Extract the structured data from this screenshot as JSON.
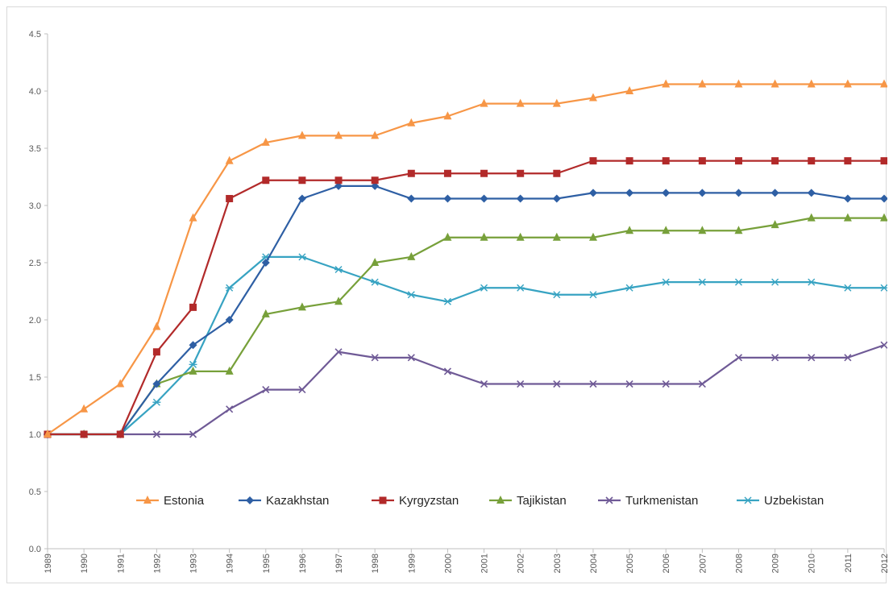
{
  "chart_data": {
    "type": "line",
    "title": "",
    "xlabel": "",
    "ylabel": "",
    "ylim": [
      0,
      4.5
    ],
    "yticks": [
      "0.0",
      "0.5",
      "1.0",
      "1.5",
      "2.0",
      "2.5",
      "3.0",
      "3.5",
      "4.0",
      "4.5"
    ],
    "categories": [
      "1989",
      "1990",
      "1991",
      "1992",
      "1993",
      "1994",
      "1995",
      "1996",
      "1997",
      "1998",
      "1999",
      "2000",
      "2001",
      "2002",
      "2003",
      "2004",
      "2005",
      "2006",
      "2007",
      "2008",
      "2009",
      "2010",
      "2011",
      "2012"
    ],
    "grid": false,
    "legend_position": "bottom-center-inside",
    "series": [
      {
        "name": "Estonia",
        "color": "#f79646",
        "marker": "triangle",
        "values": [
          1.0,
          1.22,
          1.44,
          1.94,
          2.89,
          3.39,
          3.55,
          3.61,
          3.61,
          3.61,
          3.72,
          3.78,
          3.89,
          3.89,
          3.89,
          3.94,
          4.0,
          4.06,
          4.06,
          4.06,
          4.06,
          4.06,
          4.06,
          4.06
        ]
      },
      {
        "name": "Kazakhstan",
        "color": "#2e5fa4",
        "marker": "diamond",
        "values": [
          1.0,
          1.0,
          1.0,
          1.44,
          1.78,
          2.0,
          2.5,
          3.06,
          3.17,
          3.17,
          3.06,
          3.06,
          3.06,
          3.06,
          3.06,
          3.11,
          3.11,
          3.11,
          3.11,
          3.11,
          3.11,
          3.11,
          3.06,
          3.06
        ]
      },
      {
        "name": "Kyrgyzstan",
        "color": "#b22a2a",
        "marker": "square",
        "values": [
          1.0,
          1.0,
          1.0,
          1.72,
          2.11,
          3.06,
          3.22,
          3.22,
          3.22,
          3.22,
          3.28,
          3.28,
          3.28,
          3.28,
          3.28,
          3.39,
          3.39,
          3.39,
          3.39,
          3.39,
          3.39,
          3.39,
          3.39,
          3.39
        ]
      },
      {
        "name": "Tajikistan",
        "color": "#77a03a",
        "marker": "triangle",
        "values": [
          1.0,
          1.0,
          1.0,
          1.44,
          1.55,
          1.55,
          2.05,
          2.11,
          2.16,
          2.5,
          2.55,
          2.72,
          2.72,
          2.72,
          2.72,
          2.72,
          2.78,
          2.78,
          2.78,
          2.78,
          2.83,
          2.89,
          2.89,
          2.89
        ]
      },
      {
        "name": "Turkmenistan",
        "color": "#6f5a96",
        "marker": "x",
        "values": [
          1.0,
          1.0,
          1.0,
          1.0,
          1.0,
          1.22,
          1.39,
          1.39,
          1.72,
          1.67,
          1.67,
          1.55,
          1.44,
          1.44,
          1.44,
          1.44,
          1.44,
          1.44,
          1.44,
          1.67,
          1.67,
          1.67,
          1.67,
          1.78
        ]
      },
      {
        "name": "Uzbekistan",
        "color": "#37a3c2",
        "marker": "star",
        "values": [
          1.0,
          1.0,
          1.0,
          1.28,
          1.61,
          2.28,
          2.55,
          2.55,
          2.44,
          2.33,
          2.22,
          2.16,
          2.28,
          2.28,
          2.22,
          2.22,
          2.28,
          2.33,
          2.33,
          2.33,
          2.33,
          2.33,
          2.28,
          2.28
        ]
      }
    ]
  }
}
